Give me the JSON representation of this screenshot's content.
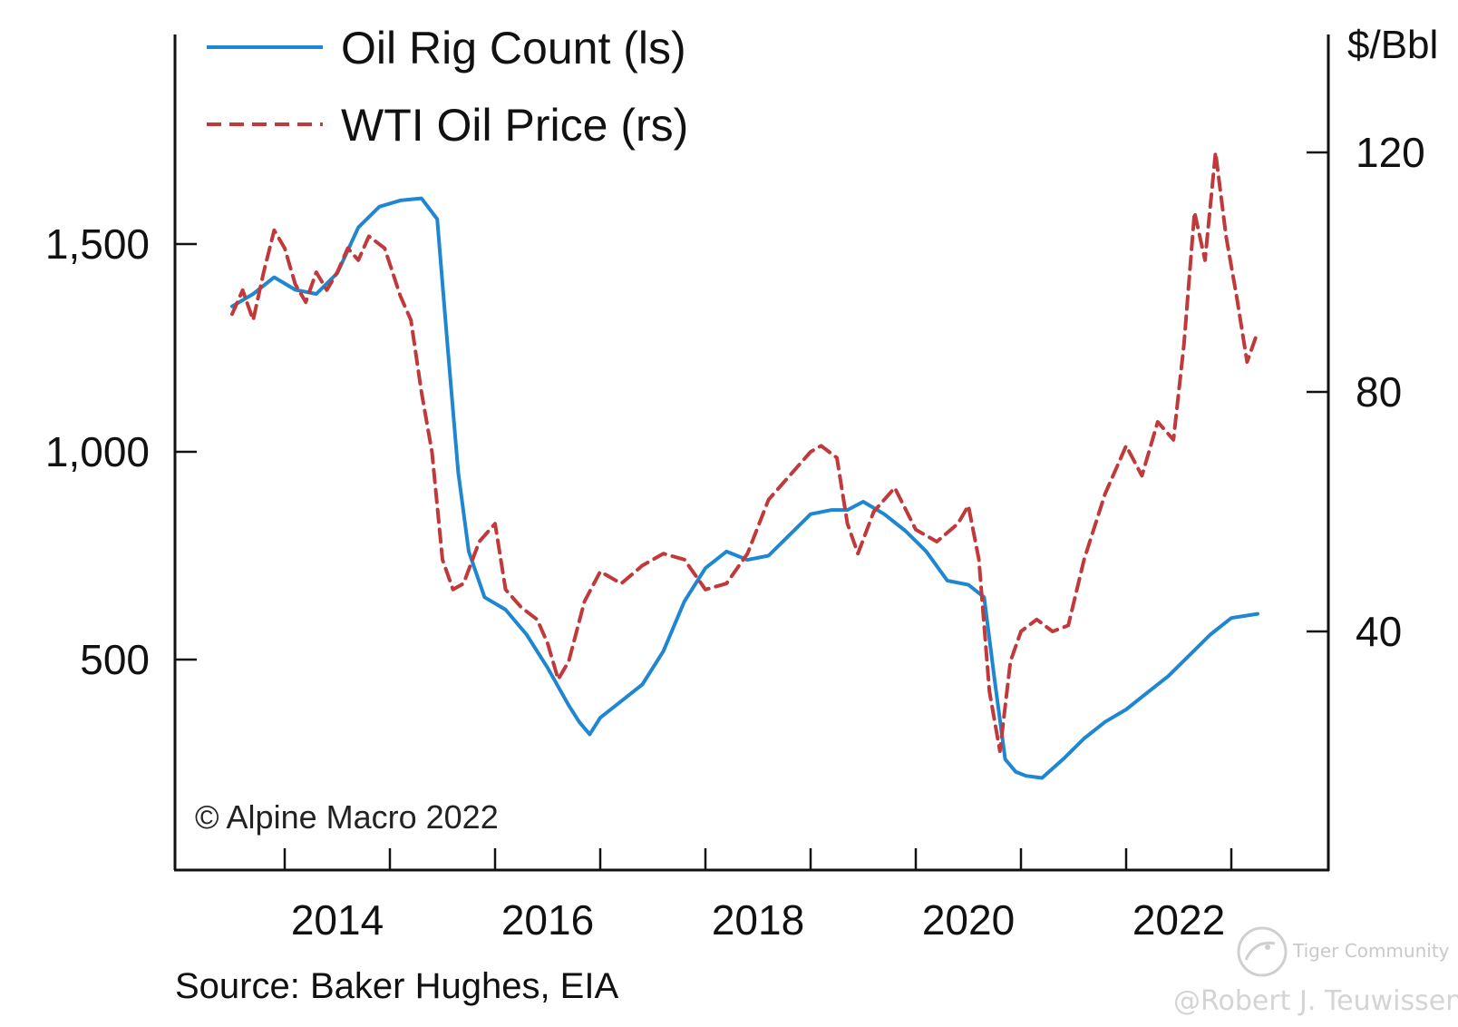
{
  "chart_data": {
    "type": "line",
    "title": "",
    "copyright": "© Alpine Macro 2022",
    "source": "Source: Baker Hughes, EIA",
    "left_axis": {
      "ylim": [
        0,
        2000
      ],
      "ticks": [
        500,
        1000,
        1500
      ],
      "tick_labels": [
        "500",
        "1,000",
        "1,500"
      ]
    },
    "right_axis": {
      "unit": "$/Bbl",
      "ylim": [
        0,
        140
      ],
      "ticks": [
        40,
        80,
        120
      ],
      "tick_labels": [
        "40",
        "80",
        "120"
      ]
    },
    "x_axis": {
      "xlim": [
        2013.0,
        2024.0
      ],
      "label_years": [
        2014,
        2016,
        2018,
        2020,
        2022
      ],
      "tick_labels": [
        "2014",
        "2016",
        "2018",
        "2020",
        "2022"
      ]
    },
    "legend": {
      "position": "top-left"
    },
    "series": [
      {
        "name": "Oil Rig Count (ls)",
        "axis": "left",
        "color": "#1f86d2",
        "style": "solid",
        "x": [
          2013.0,
          2013.2,
          2013.4,
          2013.6,
          2013.8,
          2014.0,
          2014.2,
          2014.4,
          2014.6,
          2014.8,
          2014.95,
          2015.05,
          2015.15,
          2015.25,
          2015.4,
          2015.6,
          2015.8,
          2016.0,
          2016.2,
          2016.3,
          2016.4,
          2016.5,
          2016.7,
          2016.9,
          2017.1,
          2017.3,
          2017.5,
          2017.7,
          2017.9,
          2018.1,
          2018.3,
          2018.5,
          2018.7,
          2018.85,
          2019.0,
          2019.2,
          2019.4,
          2019.6,
          2019.8,
          2020.0,
          2020.15,
          2020.25,
          2020.35,
          2020.45,
          2020.55,
          2020.7,
          2020.9,
          2021.1,
          2021.3,
          2021.5,
          2021.7,
          2021.9,
          2022.1,
          2022.3,
          2022.5,
          2022.75
        ],
        "values": [
          1350,
          1380,
          1420,
          1390,
          1380,
          1430,
          1540,
          1590,
          1605,
          1610,
          1560,
          1250,
          950,
          760,
          650,
          620,
          560,
          480,
          390,
          350,
          320,
          360,
          400,
          440,
          520,
          640,
          720,
          760,
          740,
          750,
          800,
          850,
          860,
          860,
          880,
          850,
          810,
          760,
          690,
          680,
          650,
          450,
          260,
          230,
          220,
          215,
          260,
          310,
          350,
          380,
          420,
          460,
          510,
          560,
          600,
          610
        ]
      },
      {
        "name": "WTI Oil Price (rs)",
        "axis": "right",
        "color": "#c0393b",
        "style": "dashed",
        "x": [
          2013.0,
          2013.1,
          2013.2,
          2013.3,
          2013.4,
          2013.5,
          2013.6,
          2013.7,
          2013.8,
          2013.9,
          2014.0,
          2014.1,
          2014.2,
          2014.3,
          2014.45,
          2014.6,
          2014.7,
          2014.8,
          2014.9,
          2015.0,
          2015.1,
          2015.2,
          2015.35,
          2015.5,
          2015.6,
          2015.75,
          2015.9,
          2016.0,
          2016.1,
          2016.2,
          2016.35,
          2016.5,
          2016.7,
          2016.9,
          2017.1,
          2017.3,
          2017.5,
          2017.7,
          2017.9,
          2018.1,
          2018.3,
          2018.5,
          2018.6,
          2018.75,
          2018.85,
          2018.95,
          2019.1,
          2019.3,
          2019.5,
          2019.7,
          2019.9,
          2020.0,
          2020.1,
          2020.2,
          2020.3,
          2020.4,
          2020.5,
          2020.65,
          2020.8,
          2020.95,
          2021.1,
          2021.3,
          2021.5,
          2021.65,
          2021.8,
          2021.95,
          2022.05,
          2022.15,
          2022.25,
          2022.35,
          2022.45,
          2022.55,
          2022.65,
          2022.75
        ],
        "values": [
          93,
          97,
          92,
          100,
          107,
          104,
          98,
          95,
          100,
          97,
          100,
          104,
          102,
          106,
          104,
          96,
          92,
          80,
          70,
          52,
          47,
          48,
          55,
          58,
          47,
          44,
          42,
          38,
          32,
          35,
          45,
          50,
          48,
          51,
          53,
          52,
          47,
          48,
          53,
          62,
          66,
          70,
          71,
          69,
          58,
          53,
          60,
          64,
          57,
          55,
          58,
          61,
          52,
          30,
          20,
          35,
          40,
          42,
          40,
          41,
          52,
          63,
          71,
          66,
          75,
          72,
          88,
          110,
          102,
          120,
          106,
          96,
          85,
          90
        ]
      }
    ]
  },
  "watermark": {
    "brand": "Tiger Community",
    "author": "@Robert J. Teuwissen"
  }
}
